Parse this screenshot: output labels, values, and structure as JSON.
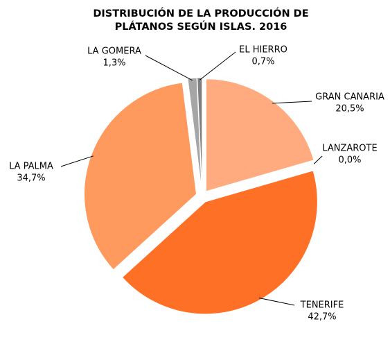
{
  "chart_data": {
    "type": "pie",
    "title": [
      "DISTRIBUCIÓN DE LA PRODUCCIÓN DE",
      "PLÁTANOS SEGÚN ISLAS. 2016"
    ],
    "categories": [
      "GRAN CANARIA",
      "LANZAROTE",
      "TENERIFE",
      "LA PALMA",
      "LA GOMERA",
      "EL HIERRO"
    ],
    "values": [
      20.5,
      0.0,
      42.7,
      34.7,
      1.3,
      0.7
    ],
    "value_labels": [
      "20,5%",
      "0,0%",
      "42,7%",
      "34,7%",
      "1,3%",
      "0,7%"
    ],
    "colors": [
      "#ffaa7f",
      "#ffd0b0",
      "#ff7027",
      "#ff9a5e",
      "#a6a6a6",
      "#7f7f7f"
    ]
  }
}
